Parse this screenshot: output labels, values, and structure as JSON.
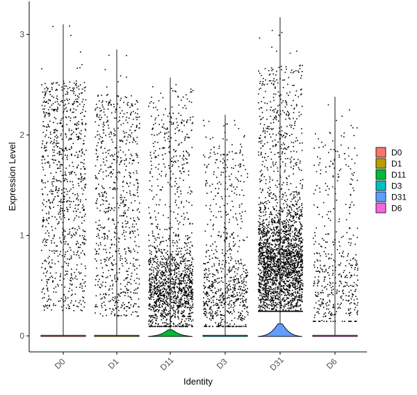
{
  "chart_data": {
    "type": "violin",
    "xlabel": "Identity",
    "ylabel": "Expression Level",
    "ylim": [
      -0.15,
      3.25
    ],
    "yticks": [
      0,
      1,
      2,
      3
    ],
    "categories": [
      "D0",
      "D1",
      "D11",
      "D3",
      "D31",
      "D6"
    ],
    "colors": [
      "#F8766D",
      "#B79F00",
      "#00BA38",
      "#00BFC4",
      "#619CFF",
      "#F564E3"
    ],
    "series": [
      {
        "name": "D0",
        "max": 3.1,
        "density": 0.0,
        "jitter_points": 900
      },
      {
        "name": "D1",
        "max": 2.85,
        "density": 0.0,
        "jitter_points": 750
      },
      {
        "name": "D11",
        "max": 2.57,
        "density": 0.06,
        "jitter_points": 1500
      },
      {
        "name": "D3",
        "max": 2.2,
        "density": 0.0,
        "jitter_points": 750
      },
      {
        "name": "D31",
        "max": 3.17,
        "density": 0.12,
        "jitter_points": 2600
      },
      {
        "name": "D6",
        "max": 2.38,
        "density": 0.0,
        "jitter_points": 450
      }
    ],
    "legend": {
      "position": "right",
      "entries": [
        "D0",
        "D1",
        "D11",
        "D3",
        "D31",
        "D6"
      ]
    },
    "grid": false
  }
}
